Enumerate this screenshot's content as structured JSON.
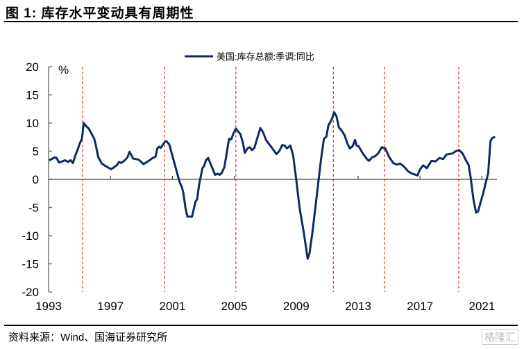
{
  "title": "图 1:  库存水平变动具有周期性",
  "source": "资料来源：Wind、国海证券研究所",
  "watermark": "格隆汇",
  "chart_data": {
    "type": "line",
    "title": "",
    "ylabel": "%",
    "xlabel": "",
    "xlim": [
      1993,
      2021.9
    ],
    "ylim": [
      -20,
      20
    ],
    "yticks": [
      20,
      15,
      10,
      5,
      0,
      -5,
      -10,
      -15,
      -20
    ],
    "xticks": [
      "1993",
      "1997",
      "2001",
      "2005",
      "2009",
      "2013",
      "2017",
      "2021"
    ],
    "legend": "top-center",
    "grid": false,
    "line_color": "#0d2a63",
    "cycle_line_color": "#e8322b",
    "cycle_lines": [
      1995.2,
      2000.5,
      2005.1,
      2011.4,
      2014.7,
      2019.5
    ],
    "series": [
      {
        "name": "美国:库存总额:季调:同比",
        "points": [
          [
            1993.03,
            3.4
          ],
          [
            1993.2,
            3.6
          ],
          [
            1993.37,
            3.9
          ],
          [
            1993.52,
            3.8
          ],
          [
            1993.67,
            3.0
          ],
          [
            1993.9,
            3.2
          ],
          [
            1994.05,
            3.4
          ],
          [
            1994.27,
            3.1
          ],
          [
            1994.42,
            3.4
          ],
          [
            1994.57,
            2.9
          ],
          [
            1994.72,
            4.2
          ],
          [
            1994.87,
            5.2
          ],
          [
            1995.02,
            6.4
          ],
          [
            1995.15,
            7.2
          ],
          [
            1995.2,
            8.3
          ],
          [
            1995.27,
            10.0
          ],
          [
            1995.45,
            9.4
          ],
          [
            1995.6,
            9.0
          ],
          [
            1995.84,
            7.8
          ],
          [
            1995.95,
            7.2
          ],
          [
            1996.06,
            6.0
          ],
          [
            1996.2,
            4.0
          ],
          [
            1996.44,
            2.8
          ],
          [
            1996.66,
            2.4
          ],
          [
            1996.85,
            2.1
          ],
          [
            1997.04,
            1.8
          ],
          [
            1997.2,
            2.1
          ],
          [
            1997.4,
            2.5
          ],
          [
            1997.56,
            3.1
          ],
          [
            1997.7,
            2.9
          ],
          [
            1997.93,
            3.4
          ],
          [
            1998.1,
            3.9
          ],
          [
            1998.23,
            4.9
          ],
          [
            1998.35,
            4.3
          ],
          [
            1998.46,
            3.7
          ],
          [
            1998.83,
            3.5
          ],
          [
            1999.13,
            2.7
          ],
          [
            1999.43,
            3.2
          ],
          [
            1999.73,
            3.8
          ],
          [
            1999.9,
            4.0
          ],
          [
            2000.03,
            5.5
          ],
          [
            2000.15,
            5.8
          ],
          [
            2000.25,
            5.6
          ],
          [
            2000.47,
            6.5
          ],
          [
            2000.6,
            6.8
          ],
          [
            2000.7,
            6.5
          ],
          [
            2000.8,
            6.2
          ],
          [
            2000.92,
            5.0
          ],
          [
            2001.1,
            3.2
          ],
          [
            2001.22,
            2.0
          ],
          [
            2001.47,
            -0.5
          ],
          [
            2001.6,
            -1.3
          ],
          [
            2001.7,
            -2.3
          ],
          [
            2001.85,
            -5.2
          ],
          [
            2001.97,
            -6.6
          ],
          [
            2002.27,
            -6.6
          ],
          [
            2002.49,
            -4.0
          ],
          [
            2002.6,
            -3.5
          ],
          [
            2002.72,
            -1.0
          ],
          [
            2002.94,
            2.0
          ],
          [
            2003.05,
            2.4
          ],
          [
            2003.17,
            3.4
          ],
          [
            2003.31,
            3.8
          ],
          [
            2003.54,
            2.3
          ],
          [
            2003.76,
            0.8
          ],
          [
            2003.91,
            1.0
          ],
          [
            2004.06,
            0.8
          ],
          [
            2004.2,
            1.2
          ],
          [
            2004.36,
            2.2
          ],
          [
            2004.5,
            4.5
          ],
          [
            2004.66,
            7.2
          ],
          [
            2004.8,
            7.1
          ],
          [
            2004.95,
            8.2
          ],
          [
            2005.1,
            9.0
          ],
          [
            2005.4,
            8.0
          ],
          [
            2005.55,
            6.5
          ],
          [
            2005.68,
            4.7
          ],
          [
            2005.85,
            5.5
          ],
          [
            2006.0,
            5.7
          ],
          [
            2006.15,
            5.2
          ],
          [
            2006.3,
            5.6
          ],
          [
            2006.5,
            7.5
          ],
          [
            2006.68,
            9.1
          ],
          [
            2006.85,
            8.4
          ],
          [
            2007.05,
            7.0
          ],
          [
            2007.2,
            6.4
          ],
          [
            2007.35,
            5.9
          ],
          [
            2007.72,
            4.5
          ],
          [
            2007.9,
            5.0
          ],
          [
            2008.1,
            6.1
          ],
          [
            2008.25,
            6.0
          ],
          [
            2008.4,
            5.5
          ],
          [
            2008.62,
            6.0
          ],
          [
            2008.8,
            4.3
          ],
          [
            2009.0,
            0.0
          ],
          [
            2009.22,
            -5.1
          ],
          [
            2009.5,
            -9.6
          ],
          [
            2009.74,
            -14.1
          ],
          [
            2009.85,
            -13.2
          ],
          [
            2010.04,
            -9.6
          ],
          [
            2010.41,
            -1.0
          ],
          [
            2010.6,
            3.5
          ],
          [
            2010.79,
            7.2
          ],
          [
            2010.95,
            7.6
          ],
          [
            2011.08,
            9.6
          ],
          [
            2011.25,
            10.4
          ],
          [
            2011.46,
            11.9
          ],
          [
            2011.6,
            11.2
          ],
          [
            2011.76,
            9.2
          ],
          [
            2011.95,
            8.6
          ],
          [
            2012.13,
            7.8
          ],
          [
            2012.3,
            6.4
          ],
          [
            2012.46,
            5.5
          ],
          [
            2012.65,
            5.9
          ],
          [
            2012.8,
            7.0
          ],
          [
            2012.9,
            6.0
          ],
          [
            2013.03,
            5.9
          ],
          [
            2013.3,
            4.6
          ],
          [
            2013.6,
            3.5
          ],
          [
            2013.7,
            3.3
          ],
          [
            2013.9,
            3.9
          ],
          [
            2014.08,
            4.1
          ],
          [
            2014.3,
            4.6
          ],
          [
            2014.52,
            5.7
          ],
          [
            2014.75,
            5.5
          ],
          [
            2015.0,
            4.0
          ],
          [
            2015.27,
            2.9
          ],
          [
            2015.5,
            2.6
          ],
          [
            2015.7,
            2.8
          ],
          [
            2015.87,
            2.5
          ],
          [
            2016.05,
            2.0
          ],
          [
            2016.24,
            1.4
          ],
          [
            2016.5,
            1.0
          ],
          [
            2016.84,
            0.7
          ],
          [
            2017.0,
            1.8
          ],
          [
            2017.2,
            2.5
          ],
          [
            2017.44,
            2.0
          ],
          [
            2017.74,
            3.3
          ],
          [
            2018.0,
            3.2
          ],
          [
            2018.26,
            3.8
          ],
          [
            2018.5,
            3.6
          ],
          [
            2018.7,
            4.4
          ],
          [
            2018.86,
            4.5
          ],
          [
            2019.1,
            4.6
          ],
          [
            2019.3,
            5.0
          ],
          [
            2019.53,
            5.2
          ],
          [
            2019.75,
            4.6
          ],
          [
            2019.98,
            3.3
          ],
          [
            2020.15,
            2.5
          ],
          [
            2020.28,
            0.2
          ],
          [
            2020.45,
            -3.5
          ],
          [
            2020.62,
            -5.9
          ],
          [
            2020.75,
            -5.7
          ],
          [
            2020.9,
            -4.2
          ],
          [
            2021.1,
            -2.3
          ],
          [
            2021.25,
            -0.5
          ],
          [
            2021.4,
            1.0
          ],
          [
            2021.55,
            6.8
          ],
          [
            2021.65,
            7.3
          ],
          [
            2021.78,
            7.5
          ],
          [
            2021.85,
            7.5
          ]
        ]
      }
    ]
  }
}
